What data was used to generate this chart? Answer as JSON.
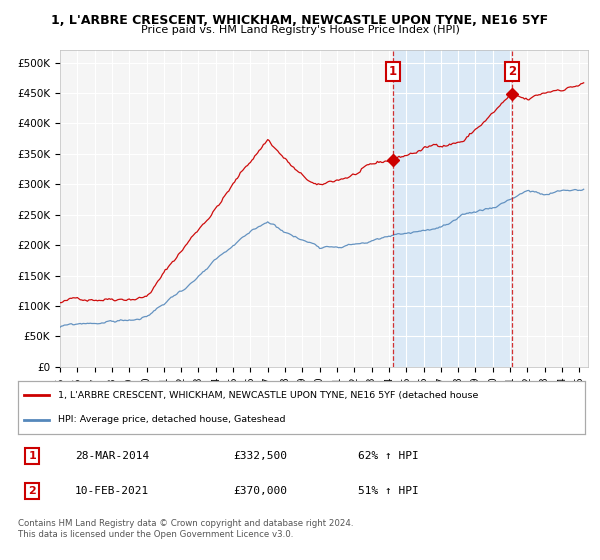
{
  "title_line1": "1, L'ARBRE CRESCENT, WHICKHAM, NEWCASTLE UPON TYNE, NE16 5YF",
  "title_line2": "Price paid vs. HM Land Registry's House Price Index (HPI)",
  "ylabel_ticks": [
    "£0",
    "£50K",
    "£100K",
    "£150K",
    "£200K",
    "£250K",
    "£300K",
    "£350K",
    "£400K",
    "£450K",
    "£500K"
  ],
  "ytick_values": [
    0,
    50000,
    100000,
    150000,
    200000,
    250000,
    300000,
    350000,
    400000,
    450000,
    500000
  ],
  "ylim": [
    0,
    520000
  ],
  "xlim_start": 1995.0,
  "xlim_end": 2025.5,
  "red_color": "#cc0000",
  "blue_color": "#5588bb",
  "shade_color": "#d0e4f7",
  "purchase1_x": 2014.24,
  "purchase1_y": 332500,
  "purchase1_label": "1",
  "purchase1_date": "28-MAR-2014",
  "purchase1_price": "£332,500",
  "purchase1_hpi": "62% ↑ HPI",
  "purchase2_x": 2021.12,
  "purchase2_y": 370000,
  "purchase2_label": "2",
  "purchase2_date": "10-FEB-2021",
  "purchase2_price": "£370,000",
  "purchase2_hpi": "51% ↑ HPI",
  "legend_line1": "1, L'ARBRE CRESCENT, WHICKHAM, NEWCASTLE UPON TYNE, NE16 5YF (detached house",
  "legend_line2": "HPI: Average price, detached house, Gateshead",
  "footnote1": "Contains HM Land Registry data © Crown copyright and database right 2024.",
  "footnote2": "This data is licensed under the Open Government Licence v3.0.",
  "background_color": "#ffffff",
  "plot_bg_color": "#f5f5f5"
}
